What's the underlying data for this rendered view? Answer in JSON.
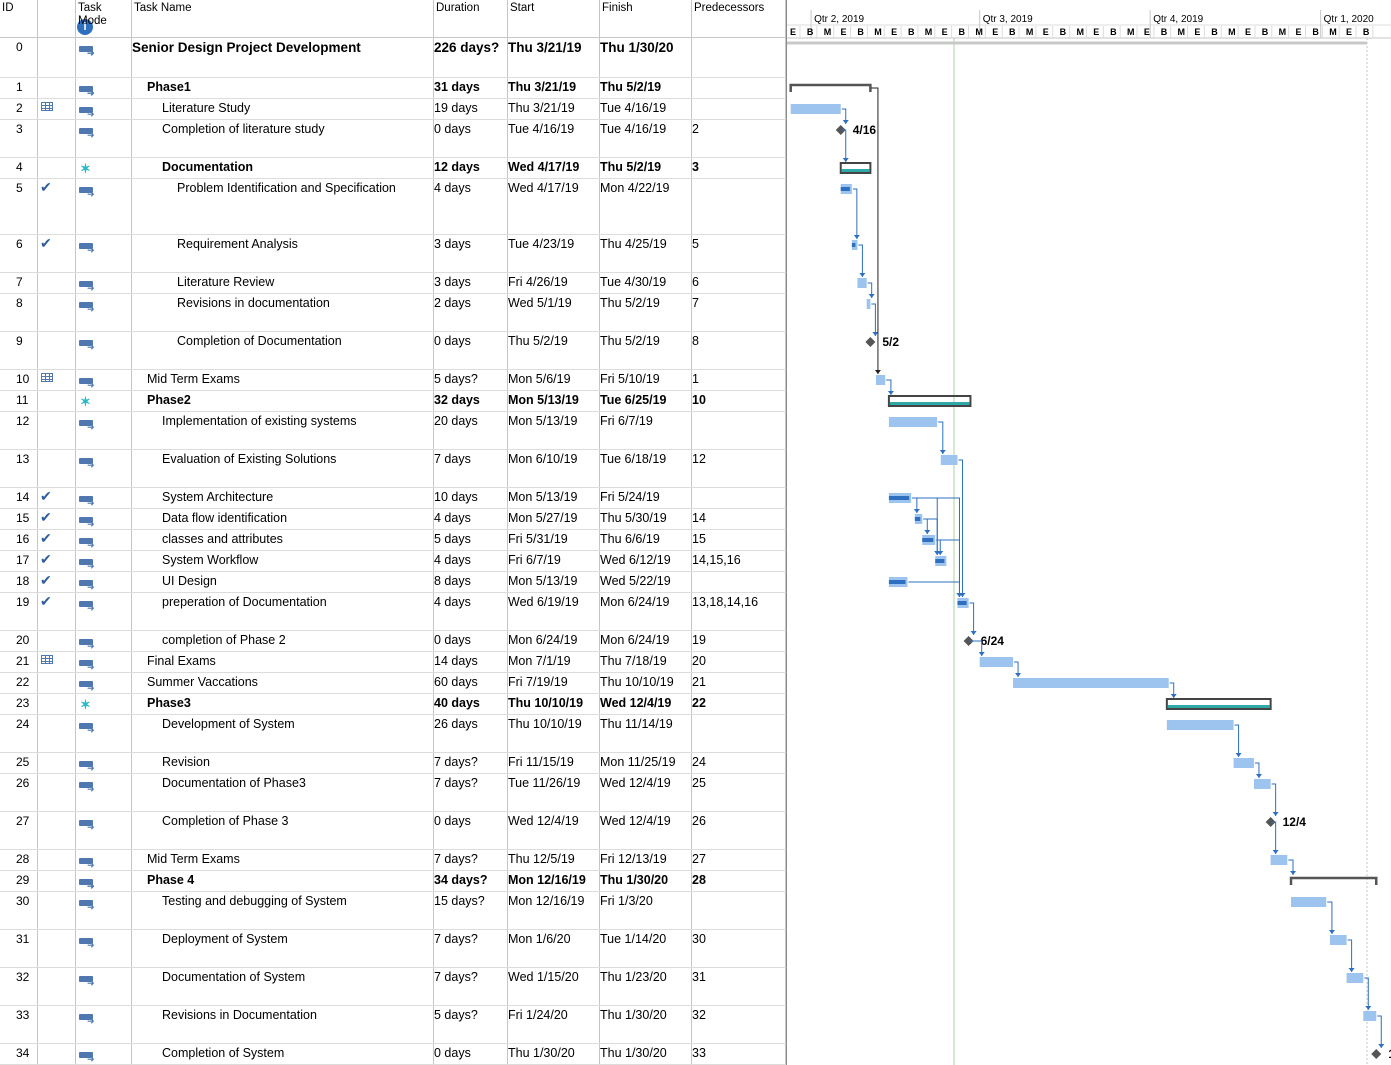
{
  "columns": {
    "id": "ID",
    "task_mode": "Task Mode",
    "task_name": "Task Name",
    "duration": "Duration",
    "start": "Start",
    "finish": "Finish",
    "predecessors": "Predecessors"
  },
  "timescale": {
    "quarters": [
      "Qtr 2, 2019",
      "Qtr 3, 2019",
      "Qtr 4, 2019",
      "Qtr 1, 2020"
    ],
    "month_letters": [
      "E",
      "B",
      "M",
      "E",
      "B",
      "M",
      "E",
      "B",
      "M",
      "E",
      "B",
      "M",
      "E",
      "B",
      "M",
      "E",
      "B",
      "M",
      "E",
      "B",
      "M",
      "E",
      "B",
      "M",
      "E",
      "B",
      "M",
      "E",
      "B",
      "M",
      "E",
      "B",
      "M",
      "E",
      "B"
    ]
  },
  "tasks": [
    {
      "id": "0",
      "name": "Senior Design Project Development",
      "duration": "226 days?",
      "start": "Thu 3/21/19",
      "finish": "Thu 1/30/20",
      "pred": "",
      "level": 0,
      "type": "project",
      "ind": "",
      "mode": "auto"
    },
    {
      "id": "1",
      "name": "Phase1",
      "duration": "31 days",
      "start": "Thu 3/21/19",
      "finish": "Thu 5/2/19",
      "pred": "",
      "level": 1,
      "type": "summary",
      "ind": "",
      "mode": "auto"
    },
    {
      "id": "2",
      "name": "Literature Study",
      "duration": "19 days",
      "start": "Thu 3/21/19",
      "finish": "Tue 4/16/19",
      "pred": "",
      "level": 2,
      "type": "task",
      "ind": "cal",
      "mode": "auto"
    },
    {
      "id": "3",
      "name": "Completion of literature study",
      "duration": "0 days",
      "start": "Tue 4/16/19",
      "finish": "Tue 4/16/19",
      "pred": "2",
      "level": 2,
      "type": "milestone",
      "ind": "",
      "mode": "auto",
      "label": "4/16"
    },
    {
      "id": "4",
      "name": "Documentation",
      "duration": "12 days",
      "start": "Wed 4/17/19",
      "finish": "Thu 5/2/19",
      "pred": "3",
      "level": 2,
      "type": "msummary",
      "ind": "",
      "mode": "manual"
    },
    {
      "id": "5",
      "name": "Problem Identification and Specification",
      "duration": "4 days",
      "start": "Wed 4/17/19",
      "finish": "Mon 4/22/19",
      "pred": "",
      "level": 3,
      "type": "task",
      "ind": "check",
      "mode": "auto"
    },
    {
      "id": "6",
      "name": "Requirement Analysis",
      "duration": "3 days",
      "start": "Tue 4/23/19",
      "finish": "Thu 4/25/19",
      "pred": "5",
      "level": 3,
      "type": "task",
      "ind": "check",
      "mode": "auto"
    },
    {
      "id": "7",
      "name": "Literature Review",
      "duration": "3 days",
      "start": "Fri 4/26/19",
      "finish": "Tue 4/30/19",
      "pred": "6",
      "level": 3,
      "type": "task",
      "ind": "",
      "mode": "auto"
    },
    {
      "id": "8",
      "name": "Revisions in documentation",
      "duration": "2 days",
      "start": "Wed 5/1/19",
      "finish": "Thu 5/2/19",
      "pred": "7",
      "level": 3,
      "type": "task",
      "ind": "",
      "mode": "auto"
    },
    {
      "id": "9",
      "name": "Completion of Documentation",
      "duration": "0 days",
      "start": "Thu 5/2/19",
      "finish": "Thu 5/2/19",
      "pred": "8",
      "level": 3,
      "type": "milestone",
      "ind": "",
      "mode": "auto",
      "label": "5/2"
    },
    {
      "id": "10",
      "name": "Mid Term Exams",
      "duration": "5 days?",
      "start": "Mon 5/6/19",
      "finish": "Fri 5/10/19",
      "pred": "1",
      "level": 1,
      "type": "task",
      "ind": "cal",
      "mode": "auto"
    },
    {
      "id": "11",
      "name": "Phase2",
      "duration": "32 days",
      "start": "Mon 5/13/19",
      "finish": "Tue 6/25/19",
      "pred": "10",
      "level": 1,
      "type": "msummary",
      "ind": "",
      "mode": "manual"
    },
    {
      "id": "12",
      "name": "Implementation of existing systems",
      "duration": "20 days",
      "start": "Mon 5/13/19",
      "finish": "Fri 6/7/19",
      "pred": "",
      "level": 2,
      "type": "task",
      "ind": "",
      "mode": "auto"
    },
    {
      "id": "13",
      "name": "Evaluation of Existing Solutions",
      "duration": "7 days",
      "start": "Mon 6/10/19",
      "finish": "Tue 6/18/19",
      "pred": "12",
      "level": 2,
      "type": "task",
      "ind": "",
      "mode": "auto"
    },
    {
      "id": "14",
      "name": "System Architecture",
      "duration": "10 days",
      "start": "Mon 5/13/19",
      "finish": "Fri 5/24/19",
      "pred": "",
      "level": 2,
      "type": "task",
      "ind": "check",
      "mode": "auto"
    },
    {
      "id": "15",
      "name": "Data flow identification",
      "duration": "4 days",
      "start": "Mon 5/27/19",
      "finish": "Thu 5/30/19",
      "pred": "14",
      "level": 2,
      "type": "task",
      "ind": "check",
      "mode": "auto"
    },
    {
      "id": "16",
      "name": "classes and attributes",
      "duration": "5 days",
      "start": "Fri 5/31/19",
      "finish": "Thu 6/6/19",
      "pred": "15",
      "level": 2,
      "type": "task",
      "ind": "check",
      "mode": "auto"
    },
    {
      "id": "17",
      "name": "System Workflow",
      "duration": "4 days",
      "start": "Fri 6/7/19",
      "finish": "Wed 6/12/19",
      "pred": "14,15,16",
      "level": 2,
      "type": "task",
      "ind": "check",
      "mode": "auto"
    },
    {
      "id": "18",
      "name": "UI Design",
      "duration": "8 days",
      "start": "Mon 5/13/19",
      "finish": "Wed 5/22/19",
      "pred": "",
      "level": 2,
      "type": "task",
      "ind": "check",
      "mode": "auto"
    },
    {
      "id": "19",
      "name": "preperation of Documentation",
      "duration": "4 days",
      "start": "Wed 6/19/19",
      "finish": "Mon 6/24/19",
      "pred": "13,18,14,16",
      "level": 2,
      "type": "task",
      "ind": "check",
      "mode": "auto"
    },
    {
      "id": "20",
      "name": "completion of Phase 2",
      "duration": "0 days",
      "start": "Mon 6/24/19",
      "finish": "Mon 6/24/19",
      "pred": "19",
      "level": 2,
      "type": "milestone",
      "ind": "",
      "mode": "auto",
      "label": "6/24"
    },
    {
      "id": "21",
      "name": "Final Exams",
      "duration": "14 days",
      "start": "Mon 7/1/19",
      "finish": "Thu 7/18/19",
      "pred": "20",
      "level": 1,
      "type": "task",
      "ind": "cal",
      "mode": "auto"
    },
    {
      "id": "22",
      "name": "Summer Vaccations",
      "duration": "60 days",
      "start": "Fri 7/19/19",
      "finish": "Thu 10/10/19",
      "pred": "21",
      "level": 1,
      "type": "task",
      "ind": "",
      "mode": "auto"
    },
    {
      "id": "23",
      "name": "Phase3",
      "duration": "40 days",
      "start": "Thu 10/10/19",
      "finish": "Wed 12/4/19",
      "pred": "22",
      "level": 1,
      "type": "msummary",
      "ind": "",
      "mode": "manual"
    },
    {
      "id": "24",
      "name": "Development of System",
      "duration": "26 days",
      "start": "Thu 10/10/19",
      "finish": "Thu 11/14/19",
      "pred": "",
      "level": 2,
      "type": "task",
      "ind": "",
      "mode": "auto"
    },
    {
      "id": "25",
      "name": "Revision",
      "duration": "7 days?",
      "start": "Fri 11/15/19",
      "finish": "Mon 11/25/19",
      "pred": "24",
      "level": 2,
      "type": "task",
      "ind": "",
      "mode": "auto"
    },
    {
      "id": "26",
      "name": "Documentation of Phase3",
      "duration": "7 days?",
      "start": "Tue 11/26/19",
      "finish": "Wed 12/4/19",
      "pred": "25",
      "level": 2,
      "type": "task",
      "ind": "",
      "mode": "auto"
    },
    {
      "id": "27",
      "name": "Completion of Phase 3",
      "duration": "0 days",
      "start": "Wed 12/4/19",
      "finish": "Wed 12/4/19",
      "pred": "26",
      "level": 2,
      "type": "milestone",
      "ind": "",
      "mode": "auto",
      "label": "12/4"
    },
    {
      "id": "28",
      "name": "Mid Term Exams",
      "duration": "7 days?",
      "start": "Thu 12/5/19",
      "finish": "Fri 12/13/19",
      "pred": "27",
      "level": 1,
      "type": "task",
      "ind": "",
      "mode": "auto"
    },
    {
      "id": "29",
      "name": "Phase 4",
      "duration": "34 days?",
      "start": "Mon 12/16/19",
      "finish": "Thu 1/30/20",
      "pred": "28",
      "level": 1,
      "type": "summary",
      "ind": "",
      "mode": "auto"
    },
    {
      "id": "30",
      "name": "Testing and debugging of System",
      "duration": "15 days?",
      "start": "Mon 12/16/19",
      "finish": "Fri 1/3/20",
      "pred": "",
      "level": 2,
      "type": "task",
      "ind": "",
      "mode": "auto"
    },
    {
      "id": "31",
      "name": "Deployment of System",
      "duration": "7 days?",
      "start": "Mon 1/6/20",
      "finish": "Tue 1/14/20",
      "pred": "30",
      "level": 2,
      "type": "task",
      "ind": "",
      "mode": "auto"
    },
    {
      "id": "32",
      "name": "Documentation of System",
      "duration": "7 days?",
      "start": "Wed 1/15/20",
      "finish": "Thu 1/23/20",
      "pred": "31",
      "level": 2,
      "type": "task",
      "ind": "",
      "mode": "auto"
    },
    {
      "id": "33",
      "name": "Revisions in Documentation",
      "duration": "5 days?",
      "start": "Fri 1/24/20",
      "finish": "Thu 1/30/20",
      "pred": "32",
      "level": 2,
      "type": "task",
      "ind": "",
      "mode": "auto"
    },
    {
      "id": "34",
      "name": "Completion of System",
      "duration": "0 days",
      "start": "Thu 1/30/20",
      "finish": "Thu 1/30/20",
      "pred": "33",
      "level": 2,
      "type": "milestone",
      "ind": "",
      "mode": "auto",
      "label": "1"
    }
  ]
}
